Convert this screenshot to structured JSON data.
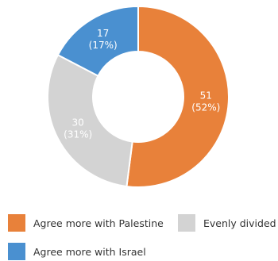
{
  "chart_data": {
    "type": "pie",
    "variant": "donut",
    "title": "",
    "slices": [
      {
        "name": "Agree more with Palestine",
        "value": 51,
        "label_value": "51",
        "label_pct": "(52%)",
        "color": "#E8813A"
      },
      {
        "name": "Evenly divided",
        "value": 30,
        "label_value": "30",
        "label_pct": "(31%)",
        "color": "#D3D3D3"
      },
      {
        "name": "Agree more with Israel",
        "value": 17,
        "label_value": "17",
        "label_pct": "(17%)",
        "color": "#4A90D0"
      }
    ],
    "legend_placement": "bottom"
  },
  "legend": {
    "items": [
      {
        "label": "Agree more with Palestine",
        "color": "#E8813A"
      },
      {
        "label": "Evenly divided",
        "color": "#D3D3D3"
      },
      {
        "label": "Agree more with Israel",
        "color": "#4A90D0"
      }
    ]
  }
}
